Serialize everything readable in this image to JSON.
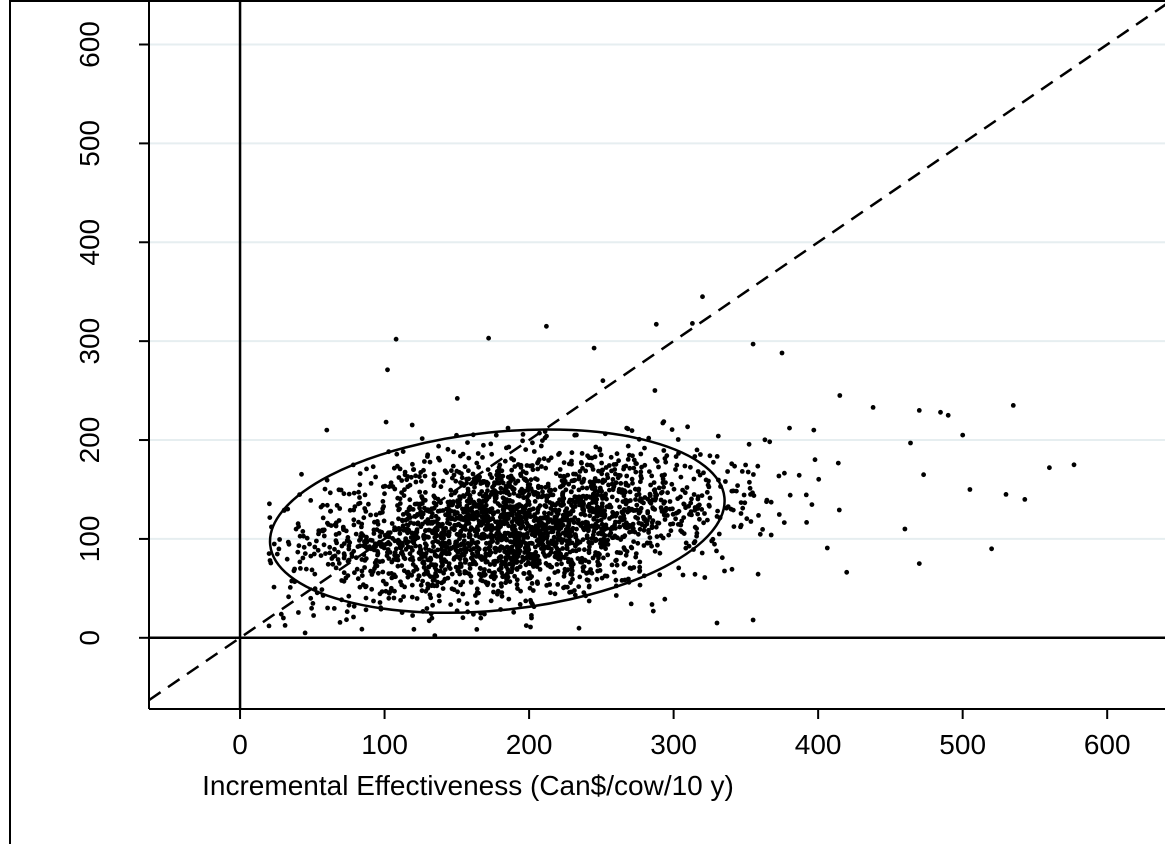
{
  "chart_data": {
    "type": "scatter",
    "title": "",
    "xlabel": "Incremental Effectiveness (Can$/cow/10 y)",
    "ylabel": "",
    "xlim": [
      -63,
      640
    ],
    "ylim": [
      -72,
      645
    ],
    "xticks": [
      0,
      100,
      200,
      300,
      400,
      500,
      600
    ],
    "yticks": [
      0,
      100,
      200,
      300,
      400,
      500,
      600
    ],
    "xtick_labels": [
      "0",
      "100",
      "200",
      "300",
      "400",
      "500",
      "600"
    ],
    "ytick_labels": [
      "0",
      "100",
      "200",
      "300",
      "400",
      "500",
      "600"
    ],
    "grid": "horizontal",
    "reference_lines": [
      {
        "kind": "vertical",
        "x": 0,
        "style": "solid"
      },
      {
        "kind": "horizontal",
        "y": 0,
        "style": "solid"
      },
      {
        "kind": "identity",
        "slope": 1,
        "style": "dashed"
      }
    ],
    "ellipse": {
      "cx": 178,
      "cy": 118,
      "rx": 158,
      "ry": 90,
      "angle_deg": 6
    },
    "cloud": {
      "count": 2600,
      "center_x": 190,
      "center_y": 112,
      "sd_x": 70,
      "sd_y": 38
    },
    "points": [
      [
        320,
        345
      ],
      [
        212,
        315
      ],
      [
        108,
        302
      ],
      [
        172,
        303
      ],
      [
        313,
        318
      ],
      [
        288,
        317
      ],
      [
        355,
        297
      ],
      [
        245,
        293
      ],
      [
        102,
        271
      ],
      [
        375,
        288
      ],
      [
        535,
        235
      ],
      [
        490,
        225
      ],
      [
        470,
        230
      ],
      [
        560,
        172
      ],
      [
        577,
        175
      ],
      [
        543,
        140
      ],
      [
        530,
        145
      ],
      [
        520,
        90
      ],
      [
        470,
        75
      ],
      [
        500,
        205
      ],
      [
        415,
        245
      ],
      [
        438,
        233
      ],
      [
        397,
        210
      ],
      [
        355,
        18
      ],
      [
        330,
        15
      ],
      [
        45,
        5
      ],
      [
        20,
        12
      ],
      [
        30,
        20
      ],
      [
        60,
        210
      ],
      [
        505,
        150
      ],
      [
        460,
        110
      ]
    ]
  }
}
